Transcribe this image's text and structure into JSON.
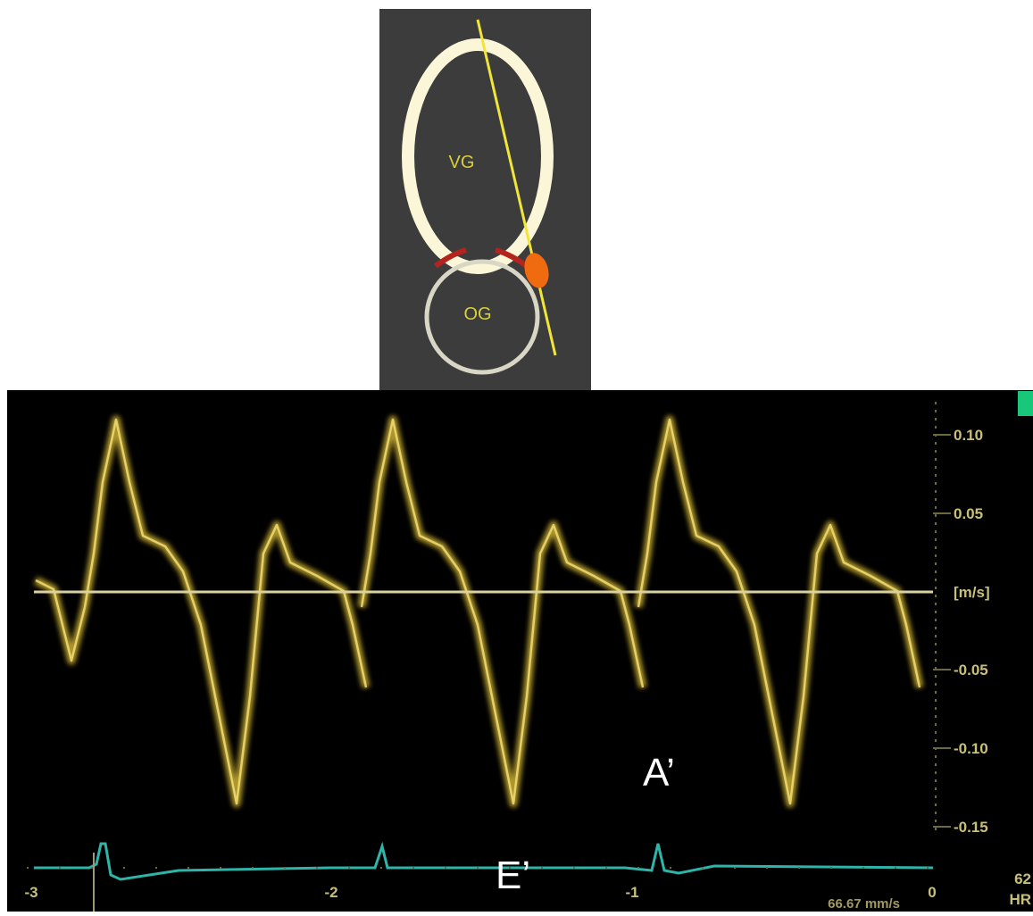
{
  "diagram": {
    "upper_chamber": "VG",
    "lower_chamber": "OG"
  },
  "doppler": {
    "y_tick_labels": [
      "0.10",
      "0.05",
      "[m/s]",
      "-0.05",
      "-0.10",
      "-0.15"
    ],
    "x_tick_labels": [
      "-3",
      "-2",
      "-1",
      "0"
    ],
    "sweep_speed": "66.67 mm/s",
    "heart_rate": "62",
    "heart_rate_label": "HR",
    "annotations": [
      "A’",
      "E’"
    ]
  }
}
